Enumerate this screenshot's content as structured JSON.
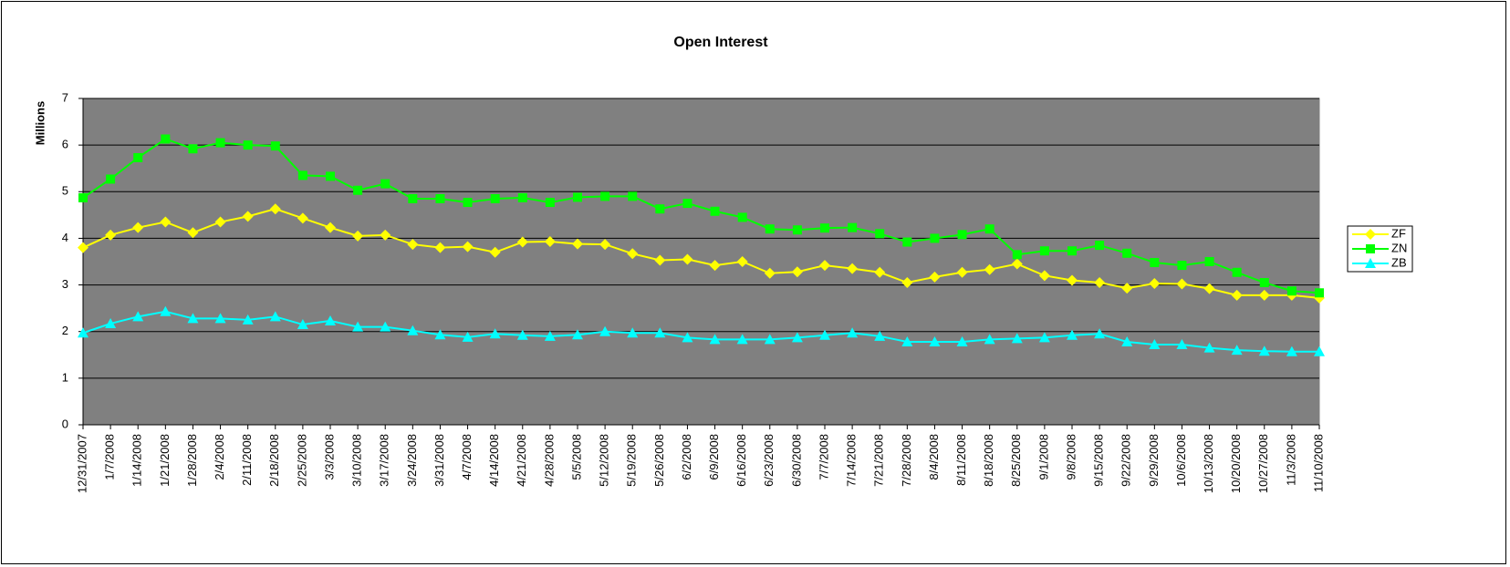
{
  "chart_data": {
    "type": "line",
    "title": "Open Interest",
    "y_label": "Millions",
    "categories": [
      "12/31/2007",
      "1/7/2008",
      "1/14/2008",
      "1/21/2008",
      "1/28/2008",
      "2/4/2008",
      "2/11/2008",
      "2/18/2008",
      "2/25/2008",
      "3/3/2008",
      "3/10/2008",
      "3/17/2008",
      "3/24/2008",
      "3/31/2008",
      "4/7/2008",
      "4/14/2008",
      "4/21/2008",
      "4/28/2008",
      "5/5/2008",
      "5/12/2008",
      "5/19/2008",
      "5/26/2008",
      "6/2/2008",
      "6/9/2008",
      "6/16/2008",
      "6/23/2008",
      "6/30/2008",
      "7/7/2008",
      "7/14/2008",
      "7/21/2008",
      "7/28/2008",
      "8/4/2008",
      "8/11/2008",
      "8/18/2008",
      "8/25/2008",
      "9/1/2008",
      "9/8/2008",
      "9/15/2008",
      "9/22/2008",
      "9/29/2008",
      "10/6/2008",
      "10/13/2008",
      "10/20/2008",
      "10/27/2008",
      "11/3/2008",
      "11/10/2008"
    ],
    "series": [
      {
        "name": "ZF",
        "color": "#ffff00",
        "marker": "diamond",
        "values": [
          3.8,
          4.07,
          4.23,
          4.35,
          4.12,
          4.35,
          4.47,
          4.63,
          4.43,
          4.23,
          4.05,
          4.07,
          3.87,
          3.8,
          3.82,
          3.7,
          3.92,
          3.93,
          3.88,
          3.87,
          3.67,
          3.53,
          3.55,
          3.42,
          3.5,
          3.25,
          3.28,
          3.42,
          3.35,
          3.27,
          3.05,
          3.17,
          3.27,
          3.33,
          3.45,
          3.2,
          3.1,
          3.05,
          2.93,
          3.03,
          3.02,
          2.92,
          2.78,
          2.78,
          2.78,
          2.72
        ]
      },
      {
        "name": "ZN",
        "color": "#00ff00",
        "marker": "square",
        "values": [
          4.87,
          5.27,
          5.73,
          6.13,
          5.92,
          6.05,
          6.0,
          5.98,
          5.35,
          5.33,
          5.03,
          5.17,
          4.85,
          4.85,
          4.77,
          4.85,
          4.87,
          4.77,
          4.88,
          4.9,
          4.9,
          4.63,
          4.75,
          4.58,
          4.45,
          4.2,
          4.18,
          4.22,
          4.23,
          4.1,
          3.92,
          4.0,
          4.08,
          4.2,
          3.65,
          3.73,
          3.73,
          3.85,
          3.68,
          3.48,
          3.42,
          3.5,
          3.27,
          3.05,
          2.87,
          2.83
        ]
      },
      {
        "name": "ZB",
        "color": "#00ffff",
        "marker": "triangle",
        "values": [
          1.97,
          2.17,
          2.32,
          2.43,
          2.28,
          2.28,
          2.25,
          2.32,
          2.15,
          2.23,
          2.1,
          2.1,
          2.02,
          1.93,
          1.88,
          1.95,
          1.92,
          1.9,
          1.93,
          2.0,
          1.97,
          1.97,
          1.87,
          1.83,
          1.83,
          1.83,
          1.87,
          1.92,
          1.97,
          1.9,
          1.78,
          1.78,
          1.78,
          1.83,
          1.85,
          1.87,
          1.92,
          1.95,
          1.78,
          1.72,
          1.72,
          1.65,
          1.6,
          1.58,
          1.57,
          1.57
        ]
      }
    ],
    "ylim": [
      0,
      7
    ],
    "yticks": [
      0,
      1,
      2,
      3,
      4,
      5,
      6,
      7
    ],
    "grid": true,
    "plot_background": "#808080",
    "legend": "right"
  }
}
